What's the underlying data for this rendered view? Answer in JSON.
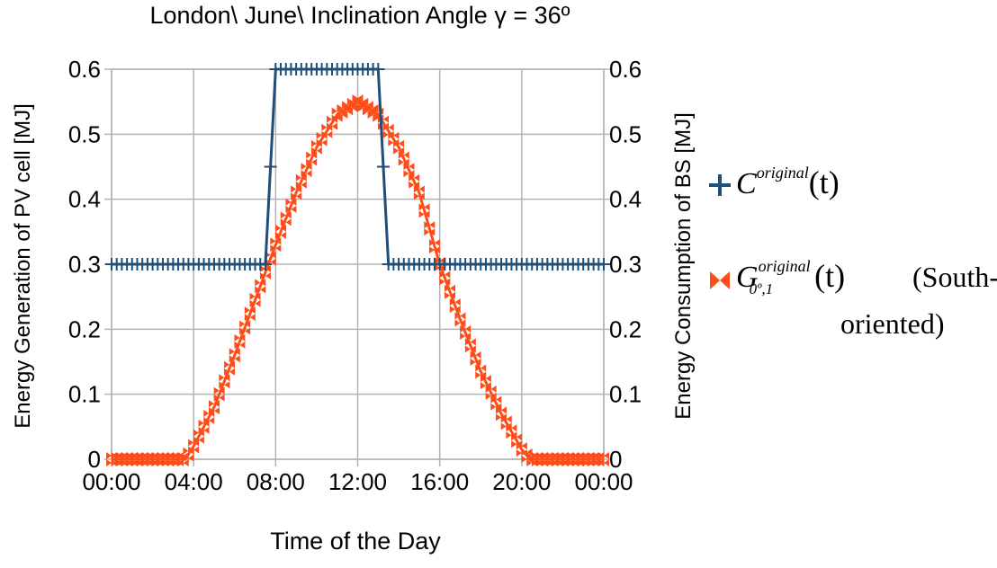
{
  "chart_data": {
    "type": "line",
    "title": "London\\ June\\ Inclination Angle γ = 36º",
    "xlabel": "Time of the Day",
    "ylabel_left": "Energy Generation of PV cell [MJ]",
    "ylabel_right": "Energy Consumption of BS [MJ]",
    "x_tick_labels": [
      "00:00",
      "04:00",
      "08:00",
      "12:00",
      "16:00",
      "20:00",
      "00:00"
    ],
    "y_tick_labels": [
      "0",
      "0.1",
      "0.2",
      "0.3",
      "0.4",
      "0.5",
      "0.6"
    ],
    "ylim": [
      0,
      0.6
    ],
    "xlim_hours": [
      0,
      24
    ],
    "grid": true,
    "legend_position": "right",
    "colors": {
      "consumption": "#1f4e79",
      "generation": "#ff4d1a",
      "grid": "#b3b3b3"
    },
    "series": [
      {
        "name": "C^original(t)",
        "marker": "plus",
        "hours": [
          0,
          7.5,
          8,
          13,
          13.5,
          24
        ],
        "values": [
          0.3,
          0.3,
          0.6,
          0.6,
          0.3,
          0.3
        ]
      },
      {
        "name": "G^original_{0º,1}(t) (South-oriented)",
        "marker": "bowtie",
        "hours": [
          0,
          3.6,
          4,
          5,
          6,
          7,
          8,
          9,
          10,
          11,
          12,
          13,
          14,
          15,
          16,
          17,
          18,
          19,
          20,
          20.4,
          24
        ],
        "values": [
          0,
          0,
          0.02,
          0.08,
          0.16,
          0.245,
          0.33,
          0.41,
          0.48,
          0.53,
          0.55,
          0.53,
          0.48,
          0.41,
          0.3,
          0.215,
          0.135,
          0.07,
          0.015,
          0,
          0
        ]
      }
    ]
  },
  "legend": {
    "c_symbol": "C",
    "c_sup": "original",
    "c_arg": "(t)",
    "g_symbol": "G",
    "g_sup": "original",
    "g_sub": "0º,1",
    "g_arg": "(t)",
    "g_note_1": "(South-",
    "g_note_2": "oriented)"
  }
}
